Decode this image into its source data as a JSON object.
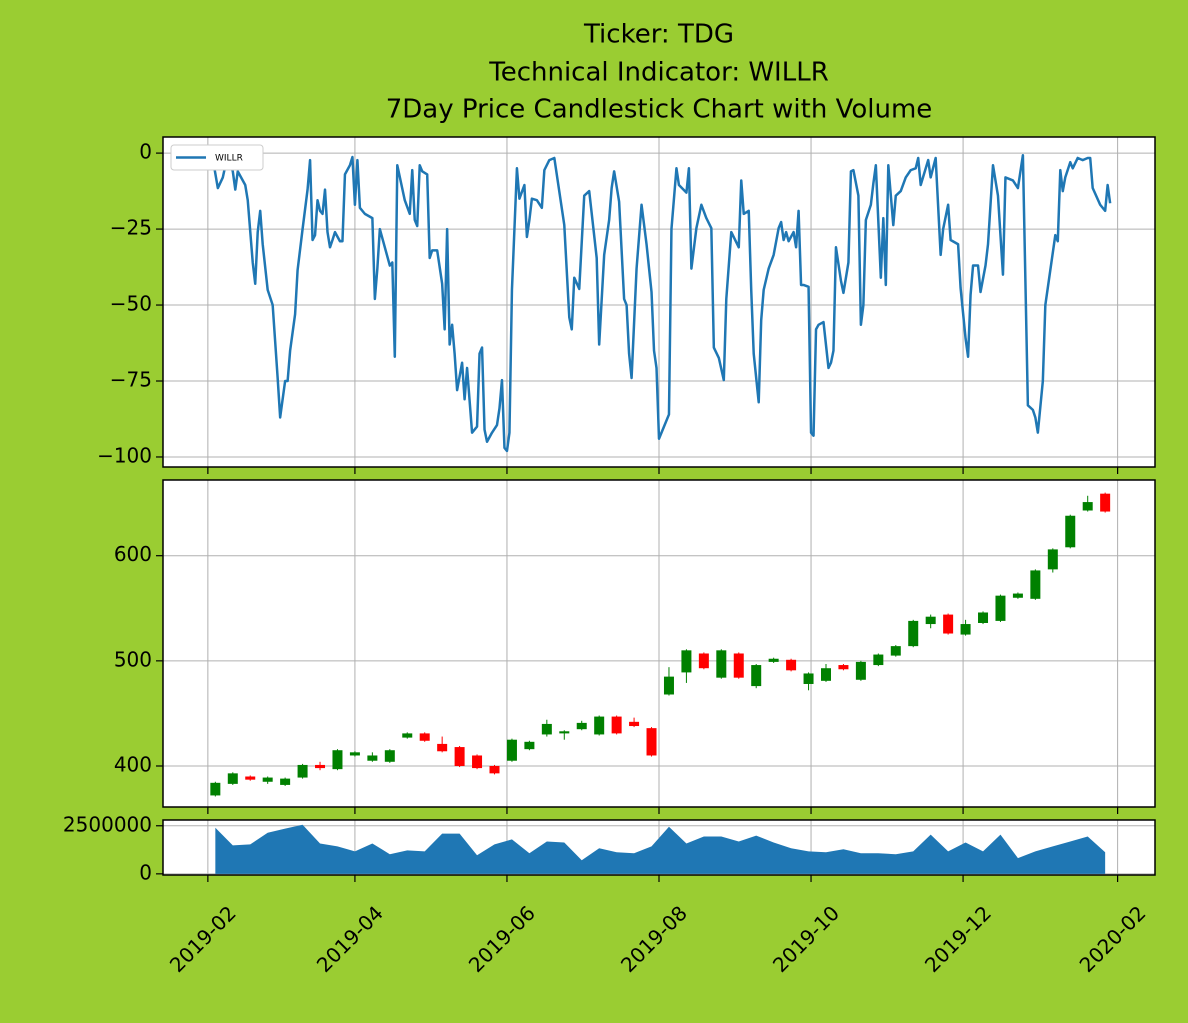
{
  "title": [
    "Ticker: TDG",
    "Technical Indicator: WILLR",
    "7Day Price Candlestick Chart with Volume"
  ],
  "chart_data": [
    {
      "type": "line",
      "x": [
        "2019-02-03",
        "2019-02-05",
        "2019-02-07",
        "2019-02-09",
        "2019-02-11",
        "2019-02-12",
        "2019-02-13",
        "2019-02-16",
        "2019-02-17",
        "2019-02-19",
        "2019-02-20",
        "2019-02-21",
        "2019-02-22",
        "2019-02-23",
        "2019-02-25",
        "2019-02-27",
        "2019-03-01",
        "2019-03-02",
        "2019-03-04",
        "2019-03-05",
        "2019-03-06",
        "2019-03-08",
        "2019-03-09",
        "2019-03-11",
        "2019-03-13",
        "2019-03-14",
        "2019-03-15",
        "2019-03-16",
        "2019-03-17",
        "2019-03-18",
        "2019-03-19",
        "2019-03-20",
        "2019-03-21",
        "2019-03-22",
        "2019-03-23",
        "2019-03-24",
        "2019-03-26",
        "2019-03-27",
        "2019-03-28",
        "2019-03-30",
        "2019-03-31",
        "2019-04-01",
        "2019-04-02",
        "2019-04-03",
        "2019-04-05",
        "2019-04-08",
        "2019-04-09",
        "2019-04-10",
        "2019-04-11",
        "2019-04-13",
        "2019-04-15",
        "2019-04-16",
        "2019-04-17",
        "2019-04-18",
        "2019-04-21",
        "2019-04-23",
        "2019-04-24",
        "2019-04-25",
        "2019-04-26",
        "2019-04-27",
        "2019-04-28",
        "2019-04-30",
        "2019-05-01",
        "2019-05-02",
        "2019-05-04",
        "2019-05-06",
        "2019-05-07",
        "2019-05-08",
        "2019-05-09",
        "2019-05-10",
        "2019-05-11",
        "2019-05-12",
        "2019-05-14",
        "2019-05-15",
        "2019-05-16",
        "2019-05-18",
        "2019-05-20",
        "2019-05-21",
        "2019-05-22",
        "2019-05-23",
        "2019-05-24",
        "2019-05-26",
        "2019-05-28",
        "2019-05-29",
        "2019-05-30",
        "2019-05-31",
        "2019-06-01",
        "2019-06-02",
        "2019-06-03",
        "2019-06-05",
        "2019-06-06",
        "2019-06-08",
        "2019-06-09",
        "2019-06-10",
        "2019-06-11",
        "2019-06-13",
        "2019-06-15",
        "2019-06-16",
        "2019-06-18",
        "2019-06-20",
        "2019-06-24",
        "2019-06-26",
        "2019-06-27",
        "2019-06-28",
        "2019-06-30",
        "2019-07-02",
        "2019-07-04",
        "2019-07-07",
        "2019-07-08",
        "2019-07-10",
        "2019-07-12",
        "2019-07-13",
        "2019-07-14",
        "2019-07-16",
        "2019-07-18",
        "2019-07-19",
        "2019-07-20",
        "2019-07-21",
        "2019-07-23",
        "2019-07-25",
        "2019-07-27",
        "2019-07-29",
        "2019-07-30",
        "2019-07-31",
        "2019-08-01",
        "2019-08-03",
        "2019-08-05",
        "2019-08-06",
        "2019-08-08",
        "2019-08-09",
        "2019-08-12",
        "2019-08-13",
        "2019-08-14",
        "2019-08-16",
        "2019-08-18",
        "2019-08-20",
        "2019-08-22",
        "2019-08-23",
        "2019-08-25",
        "2019-08-27",
        "2019-08-28",
        "2019-08-30",
        "2019-09-02",
        "2019-09-03",
        "2019-09-04",
        "2019-09-06",
        "2019-09-07",
        "2019-09-08",
        "2019-09-10",
        "2019-09-11",
        "2019-09-12",
        "2019-09-14",
        "2019-09-16",
        "2019-09-18",
        "2019-09-19",
        "2019-09-20",
        "2019-09-21",
        "2019-09-22",
        "2019-09-24",
        "2019-09-25",
        "2019-09-26",
        "2019-09-27",
        "2019-09-28",
        "2019-09-30",
        "2019-10-01",
        "2019-10-02",
        "2019-10-03",
        "2019-10-04",
        "2019-10-06",
        "2019-10-08",
        "2019-10-09",
        "2019-10-10",
        "2019-10-11",
        "2019-10-13",
        "2019-10-14",
        "2019-10-16",
        "2019-10-17",
        "2019-10-18",
        "2019-10-20",
        "2019-10-21",
        "2019-10-22",
        "2019-10-23",
        "2019-10-25",
        "2019-10-26",
        "2019-10-27",
        "2019-10-29",
        "2019-10-30",
        "2019-10-31",
        "2019-11-01",
        "2019-11-03",
        "2019-11-04",
        "2019-11-06",
        "2019-11-08",
        "2019-11-10",
        "2019-11-12",
        "2019-11-13",
        "2019-11-14",
        "2019-11-17",
        "2019-11-18",
        "2019-11-20",
        "2019-11-22",
        "2019-11-23",
        "2019-11-25",
        "2019-11-26",
        "2019-11-29",
        "2019-11-30",
        "2019-12-02",
        "2019-12-03",
        "2019-12-04",
        "2019-12-05",
        "2019-12-07",
        "2019-12-08",
        "2019-12-10",
        "2019-12-11",
        "2019-12-13",
        "2019-12-15",
        "2019-12-17",
        "2019-12-18",
        "2019-12-21",
        "2019-12-23",
        "2019-12-25",
        "2019-12-27",
        "2019-12-29",
        "2019-12-30",
        "2019-12-31",
        "2020-01-02",
        "2020-01-03",
        "2020-01-05",
        "2020-01-07",
        "2020-01-08",
        "2020-01-09",
        "2020-01-10",
        "2020-01-11",
        "2020-01-13",
        "2020-01-14",
        "2020-01-16",
        "2020-01-18",
        "2020-01-20",
        "2020-01-21",
        "2020-01-22",
        "2020-01-25",
        "2020-01-27",
        "2020-01-28",
        "2020-01-29"
      ],
      "series": [
        {
          "name": "WILLR",
          "color": "#1f77b4",
          "values": [
            -2,
            -11.5,
            -8,
            -0.5,
            -6,
            -12,
            -6,
            -10.5,
            -15.5,
            -36,
            -43,
            -26,
            -19,
            -30,
            -45,
            -50,
            -74,
            -87,
            -75,
            -75,
            -65,
            -53,
            -38.5,
            -25,
            -12,
            -2.3,
            -28.6,
            -27,
            -15.5,
            -19,
            -20,
            -12,
            -26,
            -31,
            -28.6,
            -26,
            -29,
            -29,
            -7,
            -4,
            -1.3,
            -17,
            -2.3,
            -18,
            -20,
            -21.4,
            -48,
            -38,
            -25,
            -31,
            -37,
            -36,
            -67,
            -4,
            -15.5,
            -20,
            -5.6,
            -22,
            -24,
            -4,
            -6,
            -7,
            -34.5,
            -32,
            -32,
            -43,
            -58,
            -25,
            -63,
            -56.5,
            -66,
            -78,
            -69,
            -81,
            -70.7,
            -92,
            -90,
            -66,
            -64,
            -91,
            -95,
            -92,
            -89.5,
            -84,
            -74.7,
            -97,
            -98,
            -92,
            -45,
            -5,
            -15,
            -10.5,
            -27.6,
            -22,
            -15,
            -15.5,
            -18,
            -5.6,
            -2.3,
            -1.6,
            -23.7,
            -54,
            -58,
            -41,
            -44.7,
            -14,
            -12.5,
            -34.5,
            -63,
            -33.5,
            -22,
            -11.5,
            -6,
            -16,
            -48,
            -50,
            -66,
            -74,
            -38,
            -17,
            -30,
            -45.7,
            -65,
            -70.7,
            -94,
            -90,
            -86,
            -25,
            -5,
            -10.5,
            -13,
            -5,
            -38,
            -24.7,
            -17,
            -21.4,
            -24.7,
            -64,
            -67.4,
            -74.7,
            -48,
            -26,
            -31,
            -9,
            -20,
            -19,
            -45,
            -66,
            -82,
            -55,
            -45,
            -38,
            -33.5,
            -24.7,
            -22.7,
            -28.6,
            -26,
            -29,
            -26,
            -31,
            -19,
            -43.4,
            -43.4,
            -44,
            -92,
            -93,
            -58,
            -56.5,
            -55.6,
            -70.7,
            -69,
            -65,
            -31,
            -42,
            -46,
            -36,
            -6,
            -5.6,
            -14,
            -56.5,
            -50,
            -22,
            -17,
            -10,
            -4,
            -41,
            -21.4,
            -43.4,
            -4,
            -23.7,
            -14,
            -12.5,
            -8,
            -5.6,
            -5,
            -1.6,
            -10.5,
            -2.3,
            -8,
            -1.6,
            -33.5,
            -25,
            -17,
            -28.6,
            -30,
            -44.4,
            -61,
            -67,
            -46.7,
            -37,
            -37,
            -45.7,
            -37,
            -30,
            -4,
            -14,
            -40,
            -8,
            -9,
            -11.5,
            -0.7,
            -83,
            -84.5,
            -87,
            -92,
            -75,
            -50,
            -38.5,
            -27,
            -29,
            -5.6,
            -12.5,
            -8,
            -3,
            -5,
            -1.6,
            -2.3,
            -1.6,
            -1.6,
            -11.5,
            -17,
            -19,
            -10.5,
            -16.5
          ]
        }
      ],
      "ylim": [
        -103.3,
        5.3
      ],
      "yticks": [
        {
          "value": -100,
          "label": "−100"
        },
        {
          "value": -75,
          "label": "−75"
        },
        {
          "value": -50,
          "label": "−50"
        },
        {
          "value": -25,
          "label": "−25"
        },
        0
      ],
      "grid": true,
      "legend": "upper left"
    },
    {
      "type": "candlestick",
      "x": [
        "2019-02-04",
        "2019-02-11",
        "2019-02-18",
        "2019-02-25",
        "2019-03-04",
        "2019-03-11",
        "2019-03-18",
        "2019-03-25",
        "2019-04-01",
        "2019-04-08",
        "2019-04-15",
        "2019-04-22",
        "2019-04-29",
        "2019-05-06",
        "2019-05-13",
        "2019-05-20",
        "2019-05-27",
        "2019-06-03",
        "2019-06-10",
        "2019-06-17",
        "2019-06-24",
        "2019-07-01",
        "2019-07-08",
        "2019-07-15",
        "2019-07-22",
        "2019-07-29",
        "2019-08-05",
        "2019-08-12",
        "2019-08-19",
        "2019-08-26",
        "2019-09-02",
        "2019-09-09",
        "2019-09-16",
        "2019-09-23",
        "2019-09-30",
        "2019-10-07",
        "2019-10-14",
        "2019-10-21",
        "2019-10-28",
        "2019-11-04",
        "2019-11-11",
        "2019-11-18",
        "2019-11-25",
        "2019-12-02",
        "2019-12-09",
        "2019-12-16",
        "2019-12-23",
        "2019-12-30",
        "2020-01-06",
        "2020-01-13",
        "2020-01-20",
        "2020-01-27"
      ],
      "open": [
        372,
        383,
        390,
        385,
        382,
        389,
        401,
        397,
        410,
        405,
        404,
        427,
        431,
        421,
        418,
        410,
        400,
        405,
        416,
        430,
        431,
        435,
        430,
        447,
        442,
        436,
        468,
        489,
        507,
        484,
        507,
        476,
        499,
        501,
        478,
        481,
        496,
        482,
        496,
        505,
        514,
        535,
        544,
        525,
        536,
        538,
        560,
        559,
        587,
        608,
        643,
        659
      ],
      "high": [
        385,
        394,
        391,
        390,
        389,
        402,
        404,
        416,
        414,
        413,
        416,
        432,
        432,
        428,
        419,
        411,
        401,
        426,
        424,
        444,
        434,
        443,
        448,
        448,
        446,
        437,
        494,
        511,
        508,
        511,
        508,
        497,
        503,
        502,
        489,
        497,
        497,
        500,
        507,
        515,
        539,
        544,
        545,
        539,
        547,
        563,
        565,
        587,
        607,
        639,
        657,
        660
      ],
      "low": [
        371,
        382,
        386,
        383,
        381,
        388,
        396,
        396,
        409,
        404,
        403,
        426,
        423,
        413,
        399,
        397,
        392,
        404,
        415,
        428,
        425,
        434,
        429,
        430,
        437,
        409,
        467,
        479,
        492,
        483,
        483,
        474,
        498,
        490,
        472,
        480,
        491,
        481,
        495,
        504,
        513,
        531,
        525,
        524,
        535,
        537,
        559,
        558,
        584,
        607,
        642,
        641
      ],
      "close": [
        384,
        393,
        387,
        389,
        388,
        401,
        398,
        415,
        413,
        410,
        415,
        431,
        424,
        414,
        400,
        398,
        393,
        425,
        423,
        440,
        433,
        441,
        447,
        431,
        438,
        410,
        485,
        510,
        493,
        510,
        484,
        496,
        502,
        491,
        488,
        493,
        492,
        499,
        506,
        514,
        538,
        542,
        526,
        535,
        546,
        562,
        564,
        586,
        606,
        638,
        651,
        642
      ],
      "up_color": "#008000",
      "down_color": "#ff0000",
      "ylim": [
        361,
        672
      ],
      "yticks": [
        400,
        500,
        600
      ],
      "grid": true
    },
    {
      "type": "area",
      "x": [
        "2019-02-04",
        "2019-02-11",
        "2019-02-18",
        "2019-02-25",
        "2019-03-04",
        "2019-03-11",
        "2019-03-18",
        "2019-03-25",
        "2019-04-01",
        "2019-04-08",
        "2019-04-15",
        "2019-04-22",
        "2019-04-29",
        "2019-05-06",
        "2019-05-13",
        "2019-05-20",
        "2019-05-27",
        "2019-06-03",
        "2019-06-10",
        "2019-06-17",
        "2019-06-24",
        "2019-07-01",
        "2019-07-08",
        "2019-07-15",
        "2019-07-22",
        "2019-07-29",
        "2019-08-05",
        "2019-08-12",
        "2019-08-19",
        "2019-08-26",
        "2019-09-02",
        "2019-09-09",
        "2019-09-16",
        "2019-09-23",
        "2019-09-30",
        "2019-10-07",
        "2019-10-14",
        "2019-10-21",
        "2019-10-28",
        "2019-11-04",
        "2019-11-11",
        "2019-11-18",
        "2019-11-25",
        "2019-12-02",
        "2019-12-09",
        "2019-12-16",
        "2019-12-23",
        "2019-12-30",
        "2020-01-06",
        "2020-01-13",
        "2020-01-20",
        "2020-01-27"
      ],
      "series": [
        {
          "color": "#1f77b4",
          "values": [
            2400000,
            1480000,
            1530000,
            2140000,
            2350000,
            2550000,
            1580000,
            1430000,
            1170000,
            1580000,
            1020000,
            1220000,
            1170000,
            2090000,
            2090000,
            970000,
            1530000,
            1790000,
            1070000,
            1680000,
            1630000,
            710000,
            1330000,
            1120000,
            1070000,
            1430000,
            2450000,
            1580000,
            1940000,
            1940000,
            1680000,
            1990000,
            1630000,
            1330000,
            1170000,
            1120000,
            1280000,
            1070000,
            1070000,
            1020000,
            1170000,
            2040000,
            1170000,
            1630000,
            1170000,
            2040000,
            820000,
            1170000,
            1430000,
            1680000,
            1940000,
            1120000
          ]
        }
      ],
      "ylim": [
        -60000,
        2800000
      ],
      "yticks": [
        0,
        2500000
      ],
      "xlim": [
        "2019-01-14",
        "2020-02-16"
      ],
      "xticks": [
        {
          "value": "2019-02-01",
          "label": "2019-02"
        },
        {
          "value": "2019-04-01",
          "label": "2019-04"
        },
        {
          "value": "2019-06-01",
          "label": "2019-06"
        },
        {
          "value": "2019-08-01",
          "label": "2019-08"
        },
        {
          "value": "2019-10-01",
          "label": "2019-10"
        },
        {
          "value": "2019-12-01",
          "label": "2019-12"
        },
        {
          "value": "2020-02-01",
          "label": "2020-02"
        }
      ],
      "grid": true
    }
  ]
}
